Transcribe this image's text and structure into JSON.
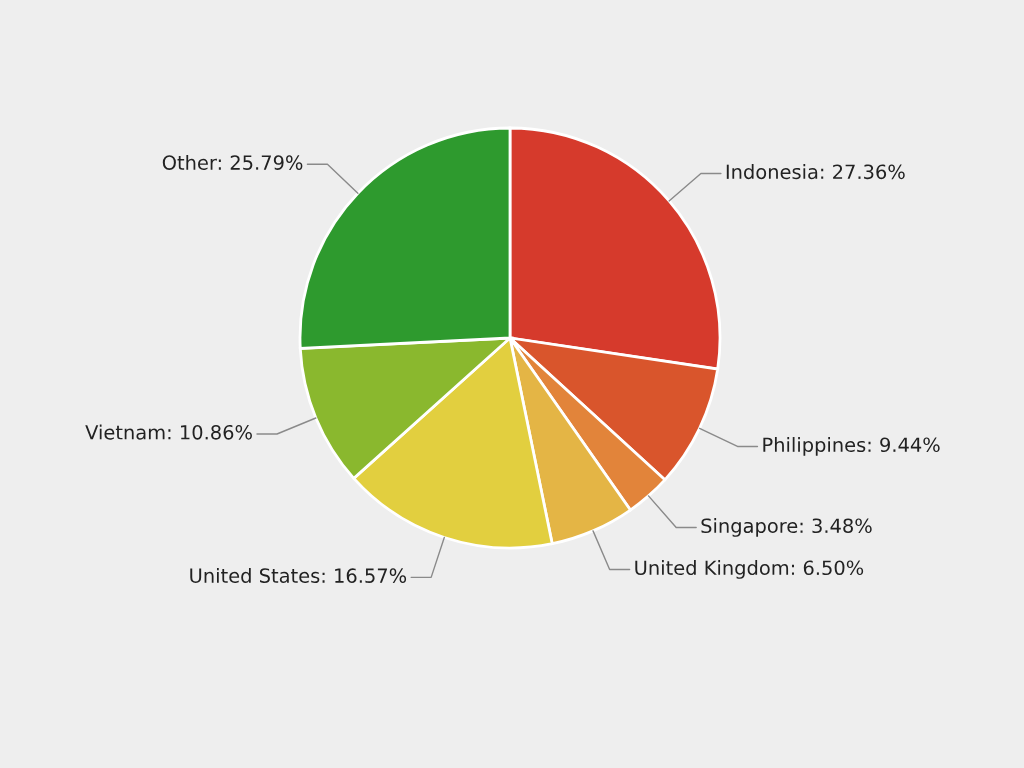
{
  "chart_data": {
    "type": "pie",
    "categories": [
      "Indonesia",
      "Philippines",
      "Singapore",
      "United Kingdom",
      "United States",
      "Vietnam",
      "Other"
    ],
    "values": [
      27.36,
      9.44,
      3.48,
      6.5,
      16.57,
      10.86,
      25.79
    ],
    "value_labels": [
      "27.36%",
      "9.44%",
      "3.48%",
      "6.50%",
      "16.57%",
      "10.86%",
      "25.79%"
    ],
    "colors": [
      "#d63a2c",
      "#d9552c",
      "#e2843a",
      "#e4b545",
      "#e2cf3f",
      "#8ab82e",
      "#2e9a2e"
    ]
  }
}
